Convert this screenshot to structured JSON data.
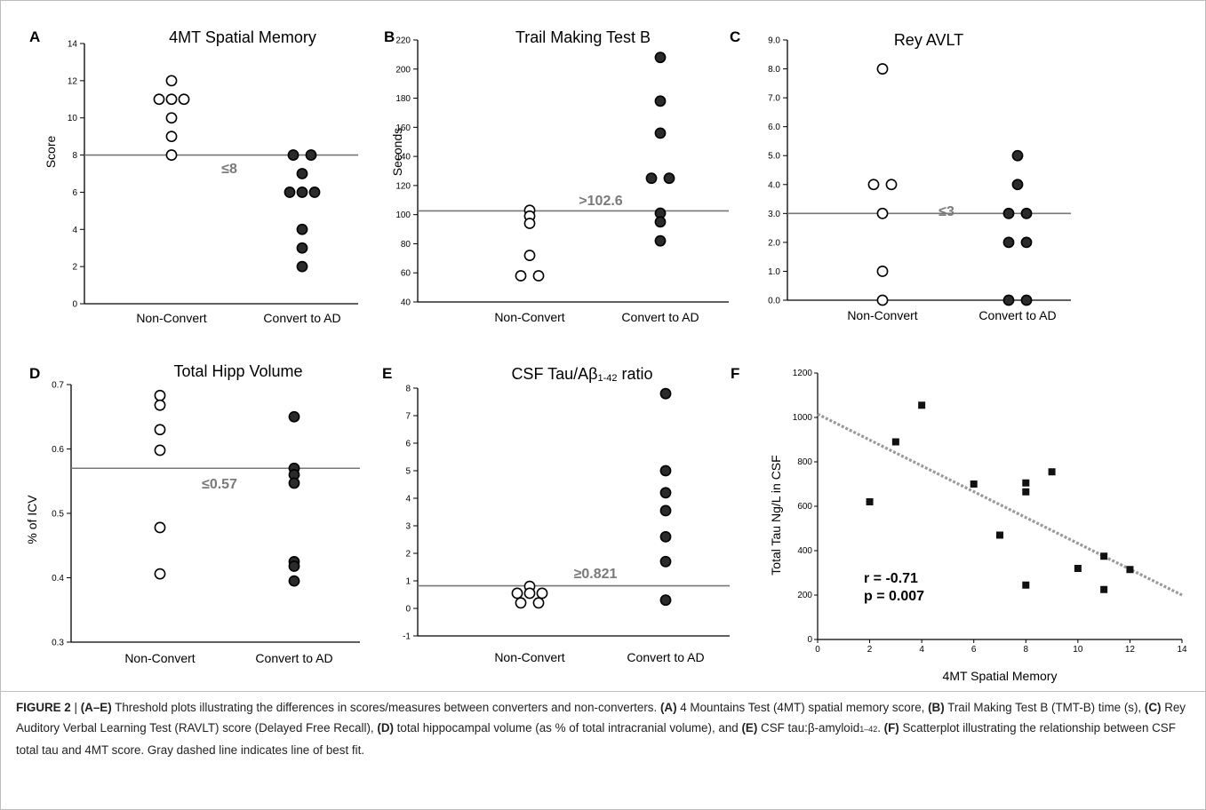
{
  "chart_data": [
    {
      "panel": "A",
      "type": "scatter",
      "title": "4MT Spatial Memory",
      "ylabel": "Score",
      "categories": [
        "Non-Convert",
        "Convert to AD"
      ],
      "ylim": [
        0,
        14
      ],
      "yticks": [
        "0",
        "2",
        "4",
        "6",
        "8",
        "10",
        "12",
        "14"
      ],
      "threshold": 8,
      "threshold_label": "≤8",
      "series": [
        {
          "category": "Non-Convert",
          "fill": "open",
          "values": [
            12,
            11,
            11,
            11,
            10,
            9,
            8
          ]
        },
        {
          "category": "Convert to AD",
          "fill": "filled",
          "values": [
            8,
            8,
            7,
            6,
            6,
            6,
            4,
            3,
            2
          ]
        }
      ]
    },
    {
      "panel": "B",
      "type": "scatter",
      "title": "Trail Making Test B",
      "ylabel": "Seconds",
      "categories": [
        "Non-Convert",
        "Convert to AD"
      ],
      "ylim": [
        40,
        220
      ],
      "yticks": [
        "40",
        "60",
        "80",
        "100",
        "120",
        "140",
        "160",
        "180",
        "200",
        "220"
      ],
      "threshold": 102.6,
      "threshold_label": ">102.6",
      "series": [
        {
          "category": "Non-Convert",
          "fill": "open",
          "values": [
            103,
            99,
            94,
            72,
            58,
            58
          ]
        },
        {
          "category": "Convert to AD",
          "fill": "filled",
          "values": [
            208,
            178,
            156,
            125,
            125,
            101,
            95,
            82
          ]
        }
      ]
    },
    {
      "panel": "C",
      "type": "scatter",
      "title": "Rey AVLT",
      "ylabel": "",
      "categories": [
        "Non-Convert",
        "Convert to AD"
      ],
      "ylim": [
        0,
        9
      ],
      "yticks": [
        "0.0",
        "1.0",
        "2.0",
        "3.0",
        "4.0",
        "5.0",
        "6.0",
        "7.0",
        "8.0",
        "9.0"
      ],
      "threshold": 3,
      "threshold_label": "≤3",
      "series": [
        {
          "category": "Non-Convert",
          "fill": "open",
          "values": [
            8,
            4,
            4,
            3,
            1,
            0
          ]
        },
        {
          "category": "Convert to AD",
          "fill": "filled",
          "values": [
            5,
            4,
            3,
            3,
            2,
            2,
            0,
            0
          ]
        }
      ]
    },
    {
      "panel": "D",
      "type": "scatter",
      "title": "Total Hipp Volume",
      "ylabel": "% of ICV",
      "categories": [
        "Non-Convert",
        "Convert to AD"
      ],
      "ylim": [
        0.3,
        0.7
      ],
      "yticks": [
        "0.3",
        "0.4",
        "0.5",
        "0.6",
        "0.7"
      ],
      "threshold": 0.57,
      "threshold_label": "≤0.57",
      "series": [
        {
          "category": "Non-Convert",
          "fill": "open",
          "values": [
            0.683,
            0.668,
            0.63,
            0.598,
            0.478,
            0.406
          ]
        },
        {
          "category": "Convert to AD",
          "fill": "filled",
          "values": [
            0.65,
            0.57,
            0.56,
            0.547,
            0.425,
            0.418,
            0.395
          ]
        }
      ]
    },
    {
      "panel": "E",
      "type": "scatter",
      "title": "CSF Tau/Aβ",
      "title_sub": "1-42",
      "title_suffix": " ratio",
      "ylabel": "",
      "categories": [
        "Non-Convert",
        "Convert to AD"
      ],
      "ylim": [
        -1,
        8
      ],
      "yticks": [
        "-1",
        "0",
        "1",
        "2",
        "3",
        "4",
        "5",
        "6",
        "7",
        "8"
      ],
      "threshold": 0.821,
      "threshold_label": "≥0.821",
      "series": [
        {
          "category": "Non-Convert",
          "fill": "open",
          "values": [
            0.8,
            0.55,
            0.5,
            0.45,
            0.2,
            0.25
          ]
        },
        {
          "category": "Convert to AD",
          "fill": "filled",
          "values": [
            7.8,
            5.0,
            4.2,
            3.55,
            2.6,
            1.7,
            0.3
          ]
        }
      ]
    },
    {
      "panel": "F",
      "type": "scatter",
      "title": "",
      "xlabel": "4MT Spatial Memory",
      "ylabel": "Total Tau Ng/L in CSF",
      "xlim": [
        0,
        14
      ],
      "ylim": [
        0,
        1200
      ],
      "xticks": [
        "0",
        "2",
        "4",
        "6",
        "8",
        "10",
        "12",
        "14"
      ],
      "yticks": [
        "0",
        "200",
        "400",
        "600",
        "800",
        "1000",
        "1200"
      ],
      "points": [
        [
          2,
          620
        ],
        [
          3,
          890
        ],
        [
          4,
          1055
        ],
        [
          6,
          700
        ],
        [
          7,
          470
        ],
        [
          8,
          705
        ],
        [
          8,
          665
        ],
        [
          8,
          245
        ],
        [
          9,
          755
        ],
        [
          10,
          320
        ],
        [
          11,
          375
        ],
        [
          11,
          225
        ],
        [
          12,
          315
        ]
      ],
      "fit_line": {
        "x": [
          0,
          14
        ],
        "y": [
          1015,
          200
        ],
        "style": "dashed",
        "color": "#9a9a9a"
      },
      "stats": [
        "r  = -0.71",
        "p = 0.007"
      ]
    }
  ],
  "caption": {
    "label": "FIGURE 2",
    "separator": " | ",
    "segments": [
      {
        "b": true,
        "t": "(A–E)"
      },
      {
        "b": false,
        "t": " Threshold plots illustrating the differences in scores/measures between converters and non-converters. "
      },
      {
        "b": true,
        "t": "(A)"
      },
      {
        "b": false,
        "t": " 4 Mountains Test (4MT) spatial memory score, "
      },
      {
        "b": true,
        "t": "(B)"
      },
      {
        "b": false,
        "t": " Trail Making Test B (TMT-B) time (s), "
      },
      {
        "b": true,
        "t": "(C)"
      },
      {
        "b": false,
        "t": " Rey Auditory Verbal Learning Test (RAVLT) score (Delayed Free Recall), "
      },
      {
        "b": true,
        "t": "(D)"
      },
      {
        "b": false,
        "t": " total hippocampal volume (as % of total intracranial volume), and "
      },
      {
        "b": true,
        "t": "(E)"
      },
      {
        "b": false,
        "t": " CSF tau:β-amyloid"
      },
      {
        "sub": true,
        "t": "1–42"
      },
      {
        "b": false,
        "t": ". "
      },
      {
        "b": true,
        "t": "(F)"
      },
      {
        "b": false,
        "t": " Scatterplot illustrating the relationship between CSF total tau and 4MT score. Gray dashed line indicates line of best fit."
      }
    ]
  }
}
